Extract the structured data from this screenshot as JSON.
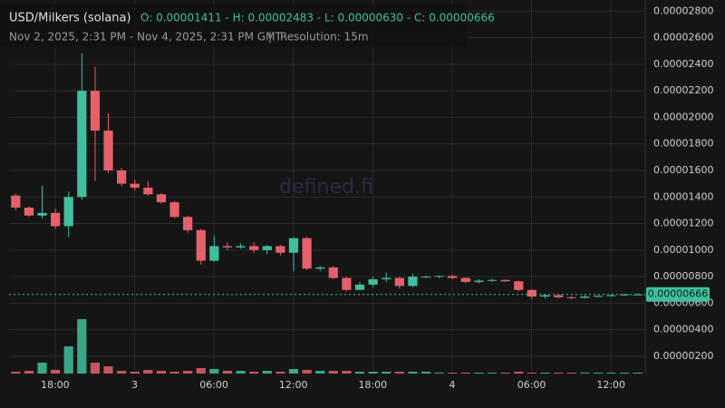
{
  "chart_data": {
    "type": "candlestick",
    "title": "USD/Milkers (solana)",
    "ohlc_summary": "O: 0.00001411 - H: 0.00002483 - L: 0.00000630 - C: 0.00000666",
    "subtitle": "Nov 2, 2025, 2:31 PM - Nov 4, 2025, 2:31 PM GMT",
    "separator": "|",
    "resolution": "Resolution: 15m",
    "watermark": "defined.fi",
    "up_color": "#3fbf9f",
    "down_color": "#e5606a",
    "grid": true,
    "xlim": [
      0,
      48
    ],
    "xticks": [
      {
        "value": 3.48,
        "label": "18:00"
      },
      {
        "value": 9.48,
        "label": "3"
      },
      {
        "value": 15.48,
        "label": "06:00"
      },
      {
        "value": 21.48,
        "label": "12:00"
      },
      {
        "value": 27.48,
        "label": "18:00"
      },
      {
        "value": 33.48,
        "label": "4"
      },
      {
        "value": 39.48,
        "label": "06:00"
      },
      {
        "value": 45.48,
        "label": "12:00"
      }
    ],
    "ylim": [
      7e-07,
      2.884e-05
    ],
    "yticks": [
      {
        "value": 2e-06,
        "label": "0.00000200"
      },
      {
        "value": 4e-06,
        "label": "0.00000400"
      },
      {
        "value": 6e-06,
        "label": "0.00000600"
      },
      {
        "value": 8e-06,
        "label": "0.00000800"
      },
      {
        "value": 1e-05,
        "label": "0.00001000"
      },
      {
        "value": 1.2e-05,
        "label": "0.00001200"
      },
      {
        "value": 1.4e-05,
        "label": "0.00001400"
      },
      {
        "value": 1.6e-05,
        "label": "0.00001600"
      },
      {
        "value": 1.8e-05,
        "label": "0.00001800"
      },
      {
        "value": 2e-05,
        "label": "0.00002000"
      },
      {
        "value": 2.2e-05,
        "label": "0.00002200"
      },
      {
        "value": 2.4e-05,
        "label": "0.00002400"
      },
      {
        "value": 2.6e-05,
        "label": "0.00002600"
      },
      {
        "value": 2.8e-05,
        "label": "0.00002800"
      }
    ],
    "last_price": {
      "value": 6.66e-06,
      "label": "0.00000666"
    },
    "open": [
      1.411e-05,
      1.32e-05,
      1.26e-05,
      1.28e-05,
      1.18e-05,
      1.4e-05,
      2.2e-05,
      1.9e-05,
      1.6e-05,
      1.5e-05,
      1.47e-05,
      1.42e-05,
      1.36e-05,
      1.25e-05,
      1.15e-05,
      9.2e-06,
      1.03e-05,
      1.02e-05,
      1.03e-05,
      1e-05,
      1.03e-05,
      9.8e-06,
      1.09e-05,
      8.6e-06,
      8.7e-06,
      7.9e-06,
      7e-06,
      7.4e-06,
      7.8e-06,
      7.9e-06,
      7.3e-06,
      8e-06,
      8e-06,
      8.05e-06,
      7.9e-06,
      7.6e-06,
      7.7e-06,
      7.75e-06,
      7.65e-06,
      7e-06,
      6.5e-06,
      6.6e-06,
      6.45e-06,
      6.4e-06,
      6.5e-06,
      6.55e-06,
      6.6e-06,
      6.66e-06
    ],
    "high": [
      1.425e-05,
      1.33e-05,
      1.484e-05,
      1.31e-05,
      1.44e-05,
      2.483e-05,
      2.38e-05,
      2.03e-05,
      1.62e-05,
      1.53e-05,
      1.52e-05,
      1.43e-05,
      1.37e-05,
      1.26e-05,
      1.16e-05,
      1.11e-05,
      1.06e-05,
      1.05e-05,
      1.06e-05,
      1.04e-05,
      1.04e-05,
      1.1e-05,
      1.1e-05,
      8.8e-06,
      8.8e-06,
      8e-06,
      7.6e-06,
      8e-06,
      8.3e-06,
      8e-06,
      8.2e-06,
      8.1e-06,
      8.1e-06,
      8.15e-06,
      7.95e-06,
      7.8e-06,
      7.85e-06,
      7.8e-06,
      7.7e-06,
      7.05e-06,
      6.7e-06,
      6.65e-06,
      6.55e-06,
      6.6e-06,
      6.6e-06,
      6.65e-06,
      6.72e-06,
      6.75e-06
    ],
    "low": [
      1.3e-05,
      1.25e-05,
      1.24e-05,
      1.16e-05,
      1.1e-05,
      1.38e-05,
      1.52e-05,
      1.58e-05,
      1.48e-05,
      1.45e-05,
      1.41e-05,
      1.35e-05,
      1.24e-05,
      1.13e-05,
      8.9e-06,
      9.1e-06,
      1e-05,
      1.01e-05,
      9.8e-06,
      9.7e-06,
      9.6e-06,
      8.4e-06,
      8.5e-06,
      8.4e-06,
      7.8e-06,
      6.9e-06,
      6.95e-06,
      7.2e-06,
      7.6e-06,
      7.1e-06,
      7.2e-06,
      7.9e-06,
      7.9e-06,
      7.8e-06,
      7.5e-06,
      7.5e-06,
      7.6e-06,
      7.6e-06,
      6.9e-06,
      6.3e-06,
      6.35e-06,
      6.35e-06,
      6.3e-06,
      6.35e-06,
      6.45e-06,
      6.5e-06,
      6.55e-06,
      6.6e-06
    ],
    "close": [
      1.32e-05,
      1.26e-05,
      1.28e-05,
      1.18e-05,
      1.4e-05,
      2.2e-05,
      1.9e-05,
      1.6e-05,
      1.5e-05,
      1.47e-05,
      1.42e-05,
      1.36e-05,
      1.25e-05,
      1.15e-05,
      9.2e-06,
      1.03e-05,
      1.02e-05,
      1.03e-05,
      1e-05,
      1.03e-05,
      9.8e-06,
      1.09e-05,
      8.6e-06,
      8.7e-06,
      7.9e-06,
      7e-06,
      7.4e-06,
      7.8e-06,
      7.9e-06,
      7.3e-06,
      8e-06,
      8e-06,
      8.05e-06,
      7.9e-06,
      7.6e-06,
      7.7e-06,
      7.75e-06,
      7.65e-06,
      7e-06,
      6.5e-06,
      6.6e-06,
      6.45e-06,
      6.4e-06,
      6.5e-06,
      6.55e-06,
      6.6e-06,
      6.66e-06,
      6.66e-06
    ],
    "volume": [
      2,
      3,
      12,
      4,
      30,
      60,
      12,
      8,
      3,
      2,
      4,
      3,
      2,
      3,
      6,
      5,
      3,
      3,
      2,
      3,
      2,
      5,
      4,
      3,
      3,
      3,
      2,
      2,
      2,
      2,
      2,
      2,
      1,
      1,
      1,
      1,
      1,
      1,
      2,
      1,
      1,
      1,
      1,
      1,
      1,
      1,
      1,
      1
    ]
  }
}
